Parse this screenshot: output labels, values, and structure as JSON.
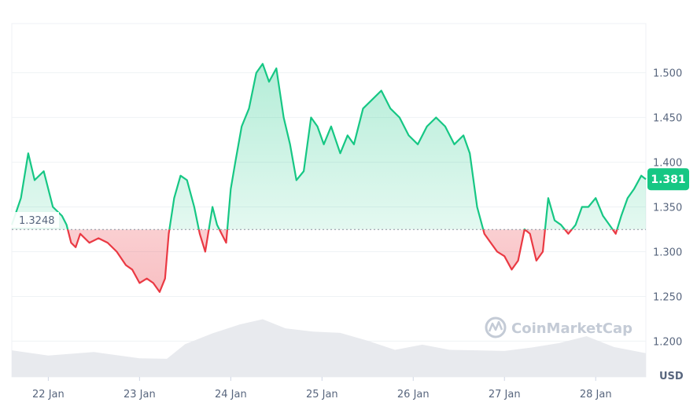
{
  "chart_data": {
    "type": "area",
    "y_unit": "USD",
    "x_tick_labels": [
      "22 Jan",
      "23 Jan",
      "24 Jan",
      "25 Jan",
      "26 Jan",
      "27 Jan",
      "28 Jan"
    ],
    "y_tick_labels": [
      "1.500",
      "1.450",
      "1.400",
      "1.350",
      "1.300",
      "1.250",
      "1.200"
    ],
    "ylim": [
      1.16,
      1.555
    ],
    "xlim": [
      21.6,
      28.55
    ],
    "baseline": {
      "value": 1.3248,
      "label": "1.3248"
    },
    "current_price": {
      "value": 1.381,
      "label": "1.381"
    },
    "grid": true,
    "colors": {
      "up": "#16c784",
      "down": "#ea3943",
      "tag": "#16c784",
      "volume": "#e8eaee"
    },
    "series": [
      {
        "x": [
          21.6,
          21.7,
          21.78,
          21.85,
          21.95,
          22.05,
          22.15,
          22.2,
          22.25,
          22.3,
          22.35,
          22.45,
          22.55,
          22.65,
          22.75,
          22.85,
          22.92,
          23.0,
          23.08,
          23.15,
          23.22,
          23.28,
          23.32,
          23.38,
          23.45,
          23.52,
          23.6,
          23.66,
          23.72,
          23.8,
          23.85,
          23.9,
          23.95,
          24.0,
          24.05,
          24.12,
          24.2,
          24.28,
          24.35,
          24.42,
          24.5,
          24.58,
          24.65,
          24.72,
          24.8,
          24.88,
          24.95,
          25.02,
          25.1,
          25.2,
          25.28,
          25.35,
          25.45,
          25.55,
          25.65,
          25.75,
          25.85,
          25.95,
          26.05,
          26.15,
          26.25,
          26.35,
          26.45,
          26.55,
          26.62,
          26.7,
          26.78,
          26.85,
          26.92,
          27.0,
          27.08,
          27.15,
          27.22,
          27.28,
          27.35,
          27.42,
          27.48,
          27.55,
          27.62,
          27.7,
          27.78,
          27.85,
          27.92,
          28.0,
          28.08,
          28.15,
          28.22,
          28.28,
          28.35,
          28.42,
          28.5,
          28.55
        ],
        "y": [
          1.33,
          1.36,
          1.41,
          1.38,
          1.39,
          1.35,
          1.34,
          1.33,
          1.31,
          1.305,
          1.32,
          1.31,
          1.315,
          1.31,
          1.3,
          1.285,
          1.28,
          1.265,
          1.27,
          1.265,
          1.255,
          1.27,
          1.32,
          1.36,
          1.385,
          1.38,
          1.35,
          1.32,
          1.3,
          1.35,
          1.33,
          1.32,
          1.31,
          1.37,
          1.4,
          1.44,
          1.46,
          1.5,
          1.51,
          1.49,
          1.505,
          1.45,
          1.42,
          1.38,
          1.39,
          1.45,
          1.44,
          1.42,
          1.44,
          1.41,
          1.43,
          1.42,
          1.46,
          1.47,
          1.48,
          1.46,
          1.45,
          1.43,
          1.42,
          1.44,
          1.45,
          1.44,
          1.42,
          1.43,
          1.41,
          1.35,
          1.32,
          1.31,
          1.3,
          1.295,
          1.28,
          1.29,
          1.325,
          1.32,
          1.29,
          1.3,
          1.36,
          1.335,
          1.33,
          1.32,
          1.33,
          1.35,
          1.35,
          1.36,
          1.34,
          1.33,
          1.32,
          1.34,
          1.36,
          1.37,
          1.385,
          1.381
        ]
      }
    ],
    "volume": {
      "x": [
        21.6,
        22.0,
        22.5,
        23.0,
        23.3,
        23.5,
        23.8,
        24.1,
        24.35,
        24.6,
        24.9,
        25.2,
        25.5,
        25.8,
        26.1,
        26.4,
        26.7,
        27.0,
        27.3,
        27.6,
        27.9,
        28.2,
        28.55
      ],
      "y": [
        0.45,
        0.4,
        0.42,
        0.35,
        0.3,
        0.6,
        0.75,
        0.95,
        1.0,
        0.88,
        0.78,
        0.8,
        0.62,
        0.5,
        0.55,
        0.5,
        0.45,
        0.48,
        0.5,
        0.62,
        0.7,
        0.55,
        0.4
      ]
    },
    "watermark": "CoinMarketCap"
  }
}
